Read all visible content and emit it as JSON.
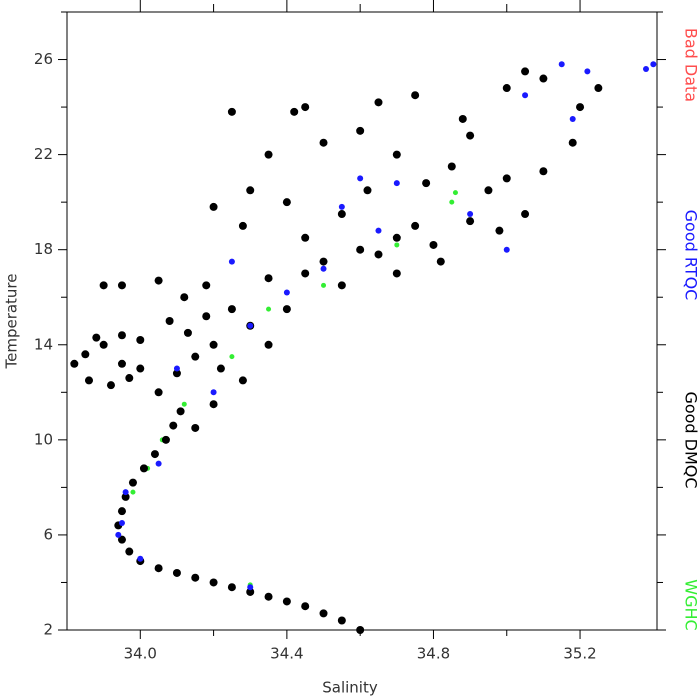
{
  "chart_data": {
    "type": "scatter",
    "x_label": "Salinity",
    "y_label": "Temperature",
    "xlim": [
      33.8,
      35.41
    ],
    "ylim": [
      2,
      28
    ],
    "xticks": [
      {
        "value": 34.0,
        "label": "34.0"
      },
      {
        "value": 34.4,
        "label": "34.4"
      },
      {
        "value": 34.8,
        "label": "34.8"
      },
      {
        "value": 35.2,
        "label": "35.2"
      }
    ],
    "xminorticks": [
      34.2,
      34.6,
      35.0
    ],
    "yticks": [
      2,
      6,
      10,
      14,
      18,
      22,
      26
    ],
    "yminorticks": [
      4,
      8,
      12,
      16,
      20,
      24,
      28
    ],
    "legend": "right",
    "series": [
      {
        "name": "Bad Data",
        "color": "#ff4d4d",
        "x": [],
        "values": []
      },
      {
        "name": "Good RTQC",
        "color": "#1a1aff",
        "x": [
          33.95,
          33.96,
          33.94,
          34.0,
          34.3,
          34.05,
          34.2,
          34.3,
          34.4,
          34.5,
          34.65,
          34.7,
          34.9,
          35.0,
          35.15,
          35.05,
          35.22,
          35.4,
          35.38,
          34.6,
          34.25,
          34.1,
          34.55,
          35.18
        ],
        "values": [
          6.5,
          7.8,
          6.0,
          5.0,
          3.8,
          9.0,
          12.0,
          14.8,
          16.2,
          17.2,
          18.8,
          20.8,
          19.5,
          18.0,
          25.8,
          24.5,
          25.5,
          25.8,
          25.6,
          21.0,
          17.5,
          13.0,
          19.8,
          23.5
        ]
      },
      {
        "name": "Good DMQC",
        "color": "#000000",
        "x": [
          34.6,
          34.55,
          34.5,
          34.45,
          34.4,
          34.35,
          34.3,
          34.25,
          34.2,
          34.15,
          34.1,
          34.05,
          34.0,
          33.97,
          33.95,
          33.94,
          33.95,
          33.96,
          33.98,
          34.01,
          34.04,
          34.07,
          34.09,
          34.11,
          33.85,
          33.82,
          33.86,
          33.92,
          33.97,
          33.95,
          33.9,
          33.95,
          34.0,
          33.88,
          34.05,
          34.1,
          34.15,
          34.2,
          34.08,
          34.12,
          34.18,
          34.25,
          34.3,
          34.22,
          34.28,
          34.35,
          34.4,
          34.35,
          34.45,
          34.5,
          34.55,
          34.6,
          34.65,
          34.7,
          34.8,
          34.75,
          34.9,
          34.95,
          35.0,
          34.85,
          34.7,
          34.6,
          34.5,
          34.45,
          34.65,
          34.75,
          34.88,
          35.0,
          35.05,
          35.1,
          35.2,
          35.25,
          35.18,
          35.1,
          34.4,
          34.3,
          34.2,
          34.28,
          33.95,
          33.9,
          34.05,
          34.45,
          34.55,
          34.35,
          34.42,
          34.25,
          34.62,
          34.78,
          34.9,
          34.98,
          35.05,
          34.82,
          34.7,
          34.15,
          34.2,
          34.13,
          34.0,
          34.18
        ],
        "values": [
          2.0,
          2.4,
          2.7,
          3.0,
          3.2,
          3.4,
          3.6,
          3.8,
          4.0,
          4.2,
          4.4,
          4.6,
          4.9,
          5.3,
          5.8,
          6.4,
          7.0,
          7.6,
          8.2,
          8.8,
          9.4,
          10.0,
          10.6,
          11.2,
          13.6,
          13.2,
          12.5,
          12.3,
          12.6,
          13.2,
          14.0,
          14.4,
          14.2,
          14.3,
          12.0,
          12.8,
          13.5,
          14.0,
          15.0,
          16.0,
          16.5,
          15.5,
          14.8,
          13.0,
          12.5,
          14.0,
          15.5,
          16.8,
          17.0,
          17.5,
          16.5,
          18.0,
          17.8,
          18.5,
          18.2,
          19.0,
          19.2,
          20.5,
          21.0,
          21.5,
          22.0,
          23.0,
          22.5,
          24.0,
          24.2,
          24.5,
          23.5,
          24.8,
          25.5,
          25.2,
          24.0,
          24.8,
          22.5,
          21.3,
          20.0,
          20.5,
          19.8,
          19.0,
          16.5,
          16.5,
          16.7,
          18.5,
          19.5,
          22.0,
          23.8,
          23.8,
          20.5,
          20.8,
          22.8,
          18.8,
          19.5,
          17.5,
          17.0,
          10.5,
          11.5,
          14.5,
          13.0,
          15.2
        ]
      },
      {
        "name": "WGHC",
        "color": "#33ee33",
        "x": [
          33.98,
          34.02,
          34.06,
          34.12,
          34.25,
          34.35,
          34.5,
          34.7,
          34.85,
          34.86,
          34.6,
          34.3
        ],
        "values": [
          7.8,
          8.8,
          10.0,
          11.5,
          13.5,
          15.5,
          16.5,
          18.2,
          20.0,
          20.4,
          2.0,
          3.9
        ]
      }
    ]
  }
}
